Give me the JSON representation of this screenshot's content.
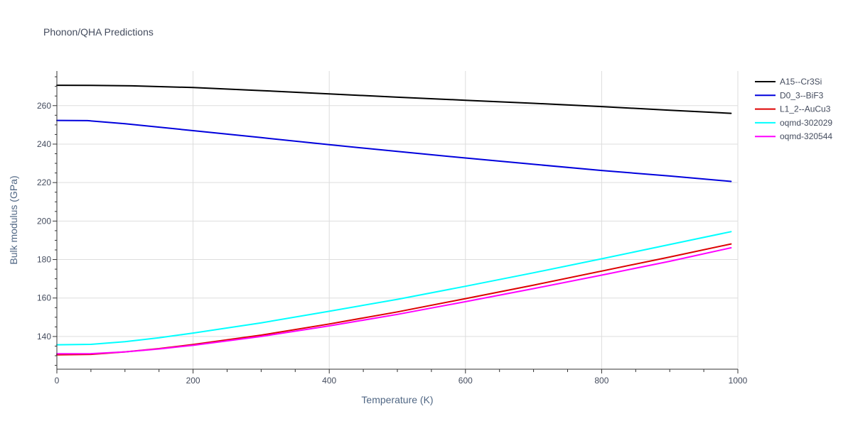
{
  "chart_data": {
    "type": "line",
    "title": "Phonon/QHA Predictions",
    "xlabel": "Temperature (K)",
    "ylabel": "Bulk modulus (GPa)",
    "xlim": [
      0,
      1000
    ],
    "ylim": [
      123,
      278
    ],
    "xticks": [
      0,
      200,
      400,
      600,
      800,
      1000
    ],
    "yticks": [
      140,
      160,
      180,
      200,
      220,
      240,
      260
    ],
    "grid": true,
    "legend_position": "top-right",
    "series": [
      {
        "name": "A15--Cr3Si",
        "color": "#000000",
        "x": [
          0,
          50,
          110,
          200,
          300,
          400,
          500,
          600,
          700,
          800,
          900,
          990
        ],
        "y": [
          270.6,
          270.5,
          270.3,
          269.4,
          267.8,
          266.1,
          264.4,
          262.8,
          261.2,
          259.5,
          257.6,
          256.0
        ]
      },
      {
        "name": "D0_3--BiF3",
        "color": "#0000dd",
        "x": [
          0,
          45,
          100,
          200,
          300,
          400,
          500,
          600,
          700,
          800,
          900,
          990
        ],
        "y": [
          252.3,
          252.2,
          250.6,
          247.0,
          243.4,
          239.7,
          236.2,
          232.8,
          229.5,
          226.3,
          223.4,
          220.6
        ]
      },
      {
        "name": "L1_2--AuCu3",
        "color": "#dd0000",
        "x": [
          0,
          50,
          100,
          150,
          200,
          300,
          400,
          500,
          600,
          700,
          800,
          900,
          990
        ],
        "y": [
          130.5,
          130.7,
          132.0,
          133.7,
          135.8,
          140.7,
          146.5,
          152.8,
          159.7,
          166.7,
          174.0,
          181.3,
          188.1
        ]
      },
      {
        "name": "oqmd-302029",
        "color": "#00ffff",
        "x": [
          0,
          50,
          100,
          150,
          200,
          300,
          400,
          500,
          600,
          700,
          800,
          900,
          990
        ],
        "y": [
          135.7,
          135.9,
          137.3,
          139.3,
          141.8,
          147.1,
          153.1,
          159.3,
          166.1,
          173.1,
          180.4,
          187.8,
          194.5
        ]
      },
      {
        "name": "oqmd-320544",
        "color": "#ff00ff",
        "x": [
          0,
          50,
          100,
          150,
          200,
          300,
          400,
          500,
          600,
          700,
          800,
          900,
          990
        ],
        "y": [
          131.0,
          131.1,
          132.0,
          133.5,
          135.4,
          140.0,
          145.5,
          151.5,
          158.1,
          164.9,
          171.9,
          179.1,
          186.1
        ]
      }
    ]
  }
}
